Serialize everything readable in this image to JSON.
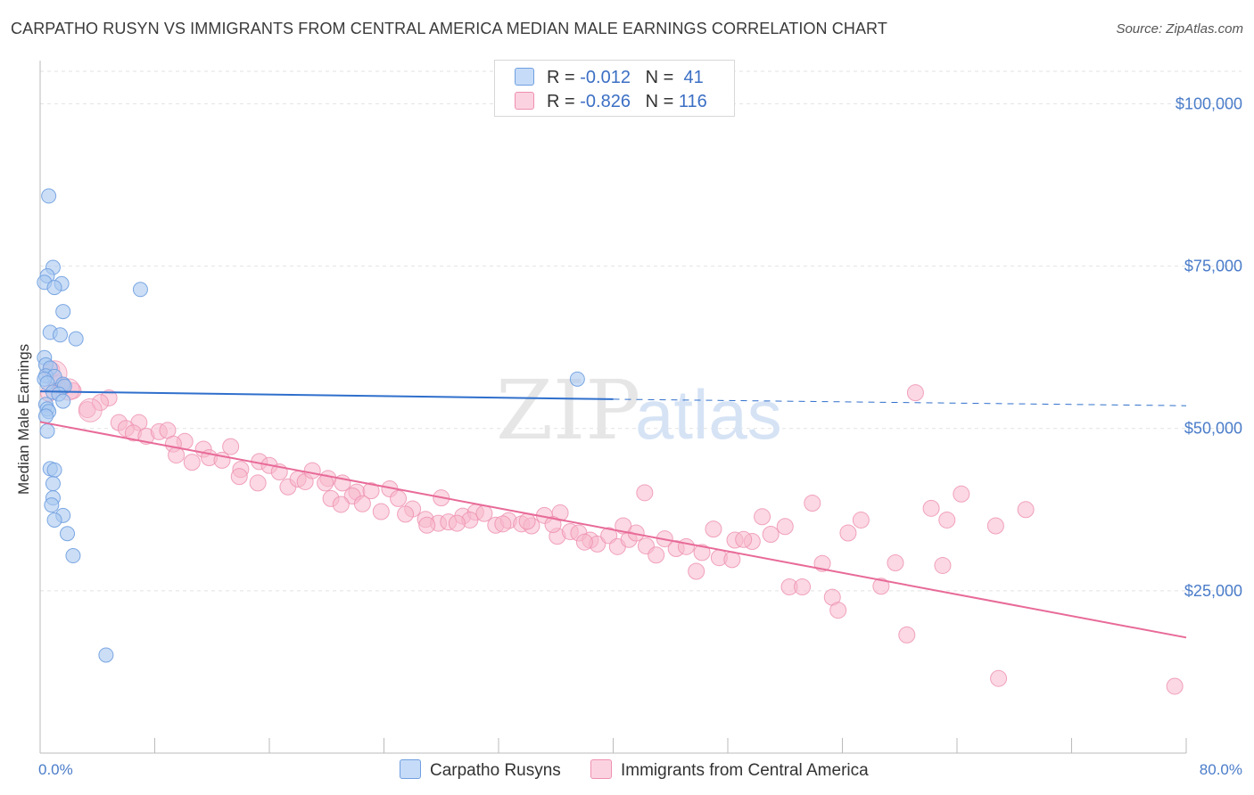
{
  "header": {
    "title": "CARPATHO RUSYN VS IMMIGRANTS FROM CENTRAL AMERICA MEDIAN MALE EARNINGS CORRELATION CHART",
    "source": "Source: ZipAtlas.com"
  },
  "watermark": {
    "zip": "ZIP",
    "atlas": "atlas"
  },
  "legend": {
    "rows": [
      {
        "r_label": "R =",
        "r_value": "-0.012",
        "n_label": "N =",
        "n_value": "41",
        "color": "#a8c8f0"
      },
      {
        "r_label": "R =",
        "r_value": "-0.826",
        "n_label": "N =",
        "n_value": "116",
        "color": "#f7b8cc"
      }
    ]
  },
  "bottom_legend": {
    "series1": "Carpatho Rusyns",
    "series2": "Immigrants from Central America"
  },
  "colors": {
    "blue_fill": "#a8c8f0",
    "blue_stroke": "#6f9fe0",
    "blue_line": "#2f6fcc",
    "pink_fill": "#f7b8cc",
    "pink_stroke": "#ee8fae",
    "pink_line": "#e86a98",
    "axis_text": "#4a7cc9",
    "grid": "#e2e2e2"
  },
  "chart_data": {
    "type": "scatter",
    "title": "CARPATHO RUSYN VS IMMIGRANTS FROM CENTRAL AMERICA MEDIAN MALE EARNINGS CORRELATION CHART",
    "xlabel": "",
    "ylabel": "Median Male Earnings",
    "xlim": [
      0,
      80
    ],
    "ylim": [
      0,
      105000
    ],
    "x_tick_labels": [
      "0.0%",
      "80.0%"
    ],
    "y_ticks": [
      25000,
      50000,
      75000,
      100000
    ],
    "y_tick_labels": [
      "$25,000",
      "$50,000",
      "$75,000",
      "$100,000"
    ],
    "grid": true,
    "legend_position": "top-center",
    "series": [
      {
        "name": "Carpatho Rusyns",
        "color": "#a8c8f0",
        "R": -0.012,
        "N": 41,
        "trend": {
          "x": [
            0,
            40
          ],
          "y": [
            55700,
            54500
          ],
          "dashed_to": [
            80,
            53500
          ]
        },
        "points": [
          [
            0.6,
            85800
          ],
          [
            0.9,
            74800
          ],
          [
            0.5,
            73500
          ],
          [
            0.3,
            72500
          ],
          [
            1.5,
            72300
          ],
          [
            1.0,
            71700
          ],
          [
            7.0,
            71400
          ],
          [
            1.6,
            68000
          ],
          [
            0.7,
            64800
          ],
          [
            1.4,
            64400
          ],
          [
            2.5,
            63800
          ],
          [
            0.3,
            60900
          ],
          [
            0.4,
            59800
          ],
          [
            0.7,
            59300
          ],
          [
            0.4,
            58100
          ],
          [
            1.0,
            58000
          ],
          [
            0.3,
            57600
          ],
          [
            0.5,
            57000
          ],
          [
            1.6,
            56800
          ],
          [
            1.7,
            56500
          ],
          [
            0.9,
            55600
          ],
          [
            1.3,
            55300
          ],
          [
            1.6,
            54200
          ],
          [
            37.5,
            57600
          ],
          [
            0.4,
            53700
          ],
          [
            0.5,
            53000
          ],
          [
            0.6,
            52600
          ],
          [
            0.4,
            51900
          ],
          [
            0.5,
            49600
          ],
          [
            0.7,
            43800
          ],
          [
            1.0,
            43600
          ],
          [
            0.9,
            41500
          ],
          [
            0.9,
            39300
          ],
          [
            0.8,
            38200
          ],
          [
            1.6,
            36600
          ],
          [
            1.0,
            35900
          ],
          [
            1.9,
            33800
          ],
          [
            2.3,
            30400
          ],
          [
            4.6,
            15100
          ]
        ]
      },
      {
        "name": "Immigrants from Central America",
        "color": "#f7b8cc",
        "R": -0.826,
        "N": 116,
        "trend": {
          "x": [
            0,
            80
          ],
          "y": [
            51000,
            17800
          ]
        },
        "points": [
          [
            0.8,
            59000
          ],
          [
            1.2,
            57000
          ],
          [
            1.6,
            56400
          ],
          [
            2.3,
            55800
          ],
          [
            0.6,
            55400
          ],
          [
            4.8,
            54700
          ],
          [
            3.3,
            52900
          ],
          [
            4.2,
            54000
          ],
          [
            5.5,
            50900
          ],
          [
            6.9,
            50900
          ],
          [
            6.0,
            50000
          ],
          [
            6.5,
            49300
          ],
          [
            7.4,
            48800
          ],
          [
            8.3,
            49500
          ],
          [
            8.9,
            49700
          ],
          [
            10.1,
            48000
          ],
          [
            9.3,
            47600
          ],
          [
            11.4,
            46800
          ],
          [
            13.3,
            47200
          ],
          [
            9.5,
            45900
          ],
          [
            10.6,
            44800
          ],
          [
            11.8,
            45500
          ],
          [
            12.7,
            45100
          ],
          [
            14.0,
            43700
          ],
          [
            15.3,
            44900
          ],
          [
            16.0,
            44300
          ],
          [
            13.9,
            42600
          ],
          [
            15.2,
            41600
          ],
          [
            16.7,
            43300
          ],
          [
            17.3,
            41000
          ],
          [
            18.0,
            42200
          ],
          [
            18.5,
            41800
          ],
          [
            19.0,
            43500
          ],
          [
            20.1,
            42300
          ],
          [
            19.9,
            41600
          ],
          [
            21.1,
            41600
          ],
          [
            20.3,
            39200
          ],
          [
            22.1,
            40200
          ],
          [
            23.1,
            40400
          ],
          [
            21.8,
            39600
          ],
          [
            24.4,
            40700
          ],
          [
            25.0,
            39200
          ],
          [
            22.5,
            38400
          ],
          [
            23.8,
            37200
          ],
          [
            26.0,
            37600
          ],
          [
            25.5,
            36800
          ],
          [
            26.9,
            36000
          ],
          [
            28.0,
            39300
          ],
          [
            27.8,
            35400
          ],
          [
            28.5,
            35600
          ],
          [
            29.5,
            36500
          ],
          [
            30.4,
            37100
          ],
          [
            31.0,
            36900
          ],
          [
            30.0,
            35900
          ],
          [
            31.8,
            35100
          ],
          [
            32.7,
            35800
          ],
          [
            33.6,
            35300
          ],
          [
            34.3,
            35000
          ],
          [
            35.2,
            36600
          ],
          [
            34.0,
            35700
          ],
          [
            36.1,
            33400
          ],
          [
            37.0,
            34100
          ],
          [
            37.6,
            33900
          ],
          [
            38.4,
            32800
          ],
          [
            38.9,
            32200
          ],
          [
            39.7,
            33500
          ],
          [
            40.3,
            31800
          ],
          [
            41.1,
            32900
          ],
          [
            41.6,
            33900
          ],
          [
            36.3,
            37000
          ],
          [
            40.7,
            35000
          ],
          [
            42.3,
            31900
          ],
          [
            43.6,
            33000
          ],
          [
            43.0,
            30500
          ],
          [
            44.4,
            31500
          ],
          [
            45.1,
            31800
          ],
          [
            46.2,
            30900
          ],
          [
            45.8,
            28000
          ],
          [
            47.4,
            30100
          ],
          [
            48.5,
            32800
          ],
          [
            48.3,
            29800
          ],
          [
            47.0,
            34500
          ],
          [
            49.7,
            32600
          ],
          [
            50.4,
            36400
          ],
          [
            51.0,
            33700
          ],
          [
            52.3,
            25600
          ],
          [
            53.2,
            25600
          ],
          [
            53.9,
            38500
          ],
          [
            54.6,
            29200
          ],
          [
            55.3,
            24000
          ],
          [
            55.7,
            22000
          ],
          [
            56.4,
            33900
          ],
          [
            57.3,
            35900
          ],
          [
            58.7,
            25700
          ],
          [
            59.7,
            29300
          ],
          [
            60.5,
            18200
          ],
          [
            61.1,
            55500
          ],
          [
            62.2,
            37700
          ],
          [
            63.0,
            28900
          ],
          [
            63.3,
            35900
          ],
          [
            64.3,
            39900
          ],
          [
            66.7,
            35000
          ],
          [
            68.8,
            37500
          ],
          [
            66.9,
            11500
          ],
          [
            79.2,
            10300
          ],
          [
            32.3,
            35300
          ],
          [
            35.8,
            35200
          ],
          [
            42.2,
            40100
          ],
          [
            27.0,
            35100
          ],
          [
            29.1,
            35400
          ],
          [
            38.0,
            32500
          ],
          [
            49.1,
            32900
          ],
          [
            21.0,
            38300
          ],
          [
            52.0,
            34900
          ]
        ]
      }
    ]
  }
}
